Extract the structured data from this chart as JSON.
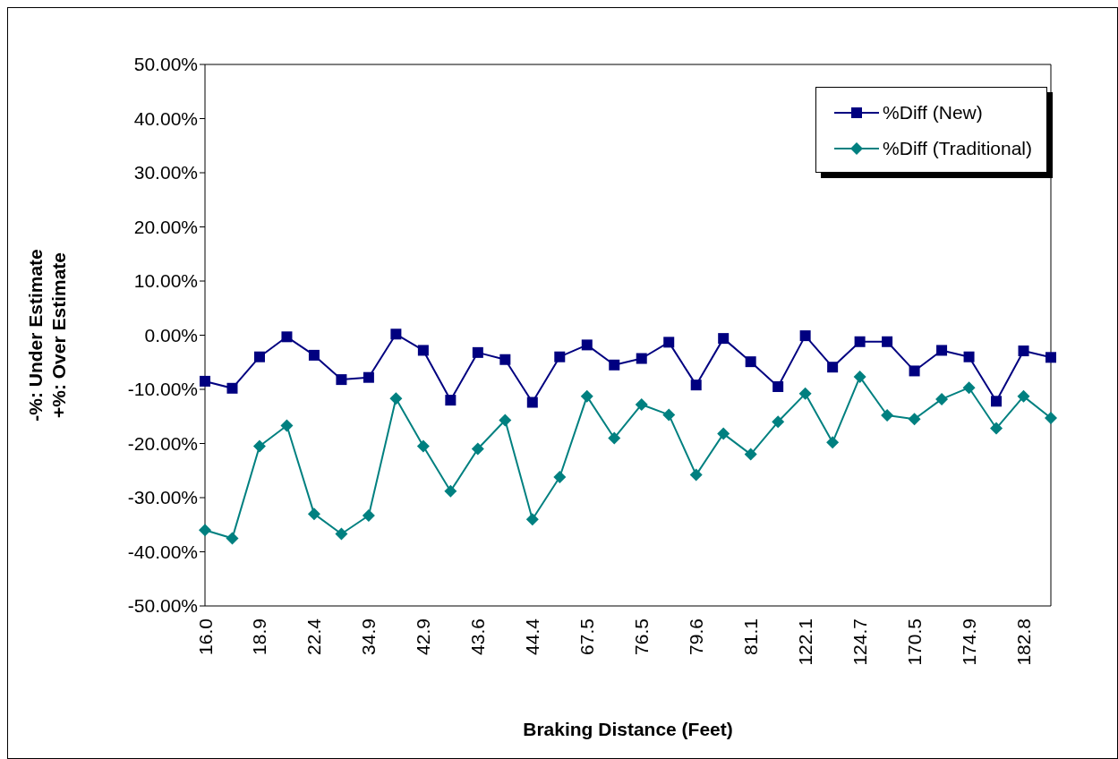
{
  "chart_data": {
    "type": "line",
    "xlabel": "Braking Distance (Feet)",
    "ylabel": "-%: Under Estimate\n+%: Over Estimate",
    "categories": [
      "16.0",
      null,
      "18.9",
      null,
      "22.4",
      null,
      "34.9",
      null,
      "42.9",
      null,
      "43.6",
      null,
      "44.4",
      null,
      "67.5",
      null,
      "76.5",
      null,
      "79.6",
      null,
      "81.1",
      null,
      "122.1",
      null,
      "124.7",
      null,
      "170.5",
      null,
      "174.9",
      null,
      "182.8",
      null
    ],
    "series": [
      {
        "name": "%Diff (New)",
        "color": "#000080",
        "marker": "square",
        "values": [
          -8.5,
          -9.8,
          -4,
          -0.3,
          -3.7,
          -8.2,
          -7.8,
          0.2,
          -2.8,
          -12,
          -3.2,
          -4.5,
          -12.4,
          -4,
          -1.8,
          -5.5,
          -4.3,
          -1.3,
          -9.2,
          -0.6,
          -4.9,
          -9.5,
          -0.1,
          -5.9,
          -1.2,
          -1.2,
          -6.6,
          -2.8,
          -4,
          -12.2,
          -2.9,
          -4.1
        ]
      },
      {
        "name": "%Diff (Traditional)",
        "color": "#008080",
        "marker": "diamond",
        "values": [
          -36,
          -37.5,
          -20.5,
          -16.7,
          -33,
          -36.7,
          -33.3,
          -11.7,
          -20.5,
          -28.8,
          -21,
          -15.7,
          -34,
          -26.2,
          -11.3,
          -19,
          -12.8,
          -14.7,
          -25.8,
          -18.2,
          -22,
          -16,
          -10.8,
          -19.8,
          -7.7,
          -14.8,
          -15.5,
          -11.8,
          -9.7,
          -17.2,
          -11.3,
          -15.3
        ]
      }
    ],
    "ylim": [
      -50,
      50
    ],
    "yticks": [
      {
        "value": -50,
        "label": "-50.00%"
      },
      {
        "value": -40,
        "label": "-40.00%"
      },
      {
        "value": -30,
        "label": "-30.00%"
      },
      {
        "value": -20,
        "label": "-20.00%"
      },
      {
        "value": -10,
        "label": "-10.00%"
      },
      {
        "value": 0,
        "label": "0.00%"
      },
      {
        "value": 10,
        "label": "10.00%"
      },
      {
        "value": 20,
        "label": "20.00%"
      },
      {
        "value": 30,
        "label": "30.00%"
      },
      {
        "value": 40,
        "label": "40.00%"
      },
      {
        "value": 50,
        "label": "50.00%"
      }
    ],
    "legend": "top right",
    "grid": false
  }
}
